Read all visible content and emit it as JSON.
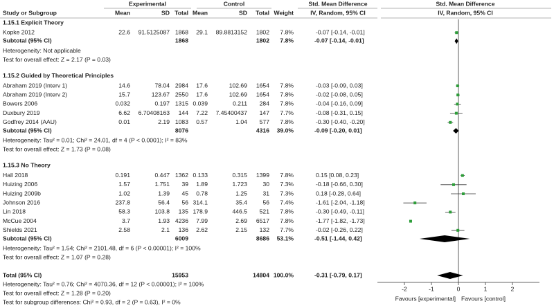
{
  "chart_data": {
    "type": "forest",
    "header": {
      "experimental": "Experimental",
      "control": "Control",
      "smd_table": "Std. Mean Difference",
      "smd_plot": "Std. Mean Difference",
      "study": "Study or Subgroup",
      "exp_mean": "Mean",
      "exp_sd": "SD",
      "exp_total": "Total",
      "ctrl_mean": "Mean",
      "ctrl_sd": "SD",
      "ctrl_total": "Total",
      "weight": "Weight",
      "method_table": "IV, Random, 95% CI",
      "method_plot": "IV, Random, 95% CI"
    },
    "groups": [
      {
        "title": "1.15.1 Explicit Theory",
        "studies": [
          {
            "name": "Kopke 2012",
            "exp_mean": 22.6,
            "exp_sd": 91.5125087,
            "exp_total": 1868,
            "ctrl_mean": 29.1,
            "ctrl_sd": 89.8813152,
            "ctrl_total": 1802,
            "weight": "7.8%",
            "smd": -0.07,
            "ci": [
              -0.14,
              -0.01
            ],
            "smd_label": "-0.07 [-0.14, -0.01]"
          }
        ],
        "subtotal": {
          "name": "Subtotal (95% CI)",
          "exp_total": 1868,
          "ctrl_total": 1802,
          "weight": "7.8%",
          "smd": -0.07,
          "ci": [
            -0.14,
            -0.01
          ],
          "smd_label": "-0.07 [-0.14, -0.01]"
        },
        "heterogeneity": "Heterogeneity: Not applicable",
        "test": "Test for overall effect: Z = 2.17 (P = 0.03)"
      },
      {
        "title": "1.15.2 Guided by Theoretical Principles",
        "studies": [
          {
            "name": "Abraham 2019 (Interv 1)",
            "exp_mean": 14.6,
            "exp_sd": 78.04,
            "exp_total": 2984,
            "ctrl_mean": 17.6,
            "ctrl_sd": 102.69,
            "ctrl_total": 1654,
            "weight": "7.8%",
            "smd": -0.03,
            "ci": [
              -0.09,
              0.03
            ],
            "smd_label": "-0.03 [-0.09, 0.03]"
          },
          {
            "name": "Abraham 2019 (Interv 2)",
            "exp_mean": 15.7,
            "exp_sd": 123.67,
            "exp_total": 2550,
            "ctrl_mean": 17.6,
            "ctrl_sd": 102.69,
            "ctrl_total": 1654,
            "weight": "7.8%",
            "smd": -0.02,
            "ci": [
              -0.08,
              0.05
            ],
            "smd_label": "-0.02 [-0.08, 0.05]"
          },
          {
            "name": "Bowers 2006",
            "exp_mean": 0.032,
            "exp_sd": 0.197,
            "exp_total": 1315,
            "ctrl_mean": 0.039,
            "ctrl_sd": 0.211,
            "ctrl_total": 284,
            "weight": "7.8%",
            "smd": -0.04,
            "ci": [
              -0.16,
              0.09
            ],
            "smd_label": "-0.04 [-0.16, 0.09]"
          },
          {
            "name": "Duxbury 2019",
            "exp_mean": 6.62,
            "exp_sd": 6.70408163,
            "exp_total": 144,
            "ctrl_mean": 7.22,
            "ctrl_sd": 7.45400437,
            "ctrl_total": 147,
            "weight": "7.7%",
            "smd": -0.08,
            "ci": [
              -0.31,
              0.15
            ],
            "smd_label": "-0.08 [-0.31, 0.15]"
          },
          {
            "name": "Godfrey 2014 (AAU)",
            "exp_mean": 0.01,
            "exp_sd": 2.19,
            "exp_total": 1083,
            "ctrl_mean": 0.57,
            "ctrl_sd": 1.04,
            "ctrl_total": 577,
            "weight": "7.8%",
            "smd": -0.3,
            "ci": [
              -0.4,
              -0.2
            ],
            "smd_label": "-0.30 [-0.40, -0.20]"
          }
        ],
        "subtotal": {
          "name": "Subtotal (95% CI)",
          "exp_total": 8076,
          "ctrl_total": 4316,
          "weight": "39.0%",
          "smd": -0.09,
          "ci": [
            -0.2,
            0.01
          ],
          "smd_label": "-0.09 [-0.20, 0.01]"
        },
        "heterogeneity": "Heterogeneity: Tau² = 0.01; Chi² = 24.01, df = 4 (P < 0.0001); I² = 83%",
        "test": "Test for overall effect: Z = 1.73 (P = 0.08)"
      },
      {
        "title": "1.15.3 No Theory",
        "studies": [
          {
            "name": "Hall 2018",
            "exp_mean": 0.191,
            "exp_sd": 0.447,
            "exp_total": 1362,
            "ctrl_mean": 0.133,
            "ctrl_sd": 0.315,
            "ctrl_total": 1399,
            "weight": "7.8%",
            "smd": 0.15,
            "ci": [
              0.08,
              0.23
            ],
            "smd_label": "0.15 [0.08, 0.23]"
          },
          {
            "name": "Huizing 2006",
            "exp_mean": 1.57,
            "exp_sd": 1.751,
            "exp_total": 39,
            "ctrl_mean": 1.89,
            "ctrl_sd": 1.723,
            "ctrl_total": 30,
            "weight": "7.3%",
            "smd": -0.18,
            "ci": [
              -0.66,
              0.3
            ],
            "smd_label": "-0.18 [-0.66, 0.30]"
          },
          {
            "name": "Huizing 2009b",
            "exp_mean": 1.02,
            "exp_sd": 1.39,
            "exp_total": 45,
            "ctrl_mean": 0.78,
            "ctrl_sd": 1.25,
            "ctrl_total": 31,
            "weight": "7.3%",
            "smd": 0.18,
            "ci": [
              -0.28,
              0.64
            ],
            "smd_label": "0.18 [-0.28, 0.64]"
          },
          {
            "name": "Johnson 2016",
            "exp_mean": 237.8,
            "exp_sd": 56.4,
            "exp_total": 56,
            "ctrl_mean": 314.1,
            "ctrl_sd": 35.4,
            "ctrl_total": 56,
            "weight": "7.4%",
            "smd": -1.61,
            "ci": [
              -2.04,
              -1.18
            ],
            "smd_label": "-1.61 [-2.04, -1.18]"
          },
          {
            "name": "Lin 2018",
            "exp_mean": 58.3,
            "exp_sd": 103.8,
            "exp_total": 135,
            "ctrl_mean": 178.9,
            "ctrl_sd": 446.5,
            "ctrl_total": 521,
            "weight": "7.8%",
            "smd": -0.3,
            "ci": [
              -0.49,
              -0.11
            ],
            "smd_label": "-0.30 [-0.49, -0.11]"
          },
          {
            "name": "McCue 2004",
            "exp_mean": 3.7,
            "exp_sd": 1.93,
            "exp_total": 4236,
            "ctrl_mean": 7.99,
            "ctrl_sd": 2.69,
            "ctrl_total": 6517,
            "weight": "7.8%",
            "smd": -1.77,
            "ci": [
              -1.82,
              -1.73
            ],
            "smd_label": "-1.77 [-1.82, -1.73]"
          },
          {
            "name": "Shields 2021",
            "exp_mean": 2.58,
            "exp_sd": 2.1,
            "exp_total": 136,
            "ctrl_mean": 2.62,
            "ctrl_sd": 2.15,
            "ctrl_total": 132,
            "weight": "7.7%",
            "smd": -0.02,
            "ci": [
              -0.26,
              0.22
            ],
            "smd_label": "-0.02 [-0.26, 0.22]"
          }
        ],
        "subtotal": {
          "name": "Subtotal (95% CI)",
          "exp_total": 6009,
          "ctrl_total": 8686,
          "weight": "53.1%",
          "smd": -0.51,
          "ci": [
            -1.44,
            0.42
          ],
          "smd_label": "-0.51 [-1.44, 0.42]"
        },
        "heterogeneity": "Heterogeneity: Tau² = 1.54; Chi² = 2101.48, df = 6 (P < 0.00001); I² = 100%",
        "test": "Test for overall effect: Z = 1.07 (P = 0.28)"
      }
    ],
    "total": {
      "name": "Total (95% CI)",
      "exp_total": 15953,
      "ctrl_total": 14804,
      "weight": "100.0%",
      "smd": -0.31,
      "ci": [
        -0.79,
        0.17
      ],
      "smd_label": "-0.31 [-0.79, 0.17]"
    },
    "total_heterogeneity": "Heterogeneity: Tau² = 0.76; Chi² = 4070.36, df = 12 (P < 0.00001); I² = 100%",
    "total_test": "Test for overall effect: Z = 1.28 (P = 0.20)",
    "subgroup_test": "Test for subgroup differences: Chi² = 0.93, df = 2 (P = 0.63), I² = 0%",
    "xlim": [
      -3,
      3
    ],
    "xticks": [
      -2,
      -1,
      0,
      1,
      2
    ],
    "favours_left": "Favours [experimental]",
    "favours_right": "Favours [control]",
    "study_color": "#2e9e3a",
    "pooled_color": "#000000"
  }
}
